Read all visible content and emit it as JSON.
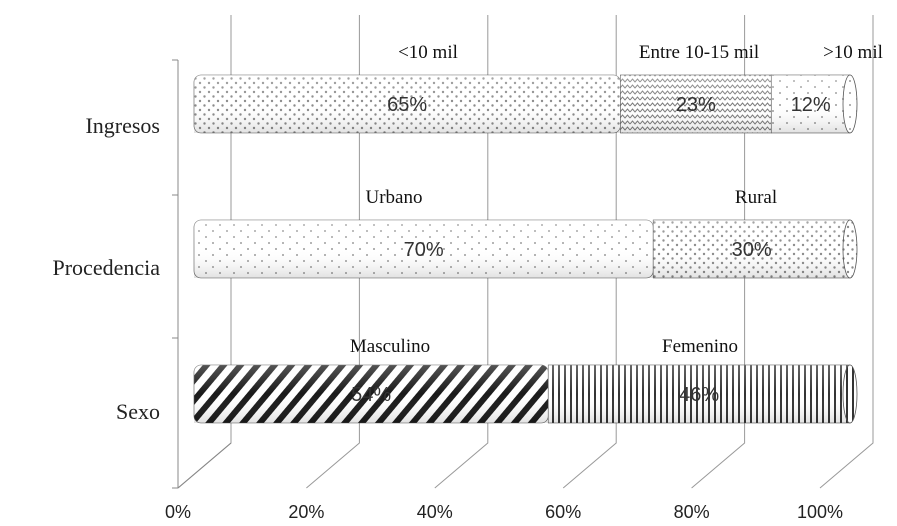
{
  "chart_data": {
    "type": "bar",
    "orientation": "horizontal",
    "stacked": "100%",
    "categories": [
      "Ingresos",
      "Procedencia",
      "Sexo"
    ],
    "segments": [
      [
        {
          "label": "<10 mil",
          "value": 65,
          "value_label": "65%",
          "pattern": "dots-dense"
        },
        {
          "label": "Entre 10-15 mil",
          "value": 23,
          "value_label": "23%",
          "pattern": "zigzag"
        },
        {
          "label": ">10 mil",
          "value": 12,
          "value_label": "12%",
          "pattern": "dots-sparse"
        }
      ],
      [
        {
          "label": "Urbano",
          "value": 70,
          "value_label": "70%",
          "pattern": "dots-sparse"
        },
        {
          "label": "Rural",
          "value": 30,
          "value_label": "30%",
          "pattern": "dots-dense"
        }
      ],
      [
        {
          "label": "Masculino",
          "value": 54,
          "value_label": "54%",
          "pattern": "diagonal"
        },
        {
          "label": "Femenino",
          "value": 46,
          "value_label": "46%",
          "pattern": "vertical"
        }
      ]
    ],
    "x_ticks": [
      "0%",
      "20%",
      "40%",
      "60%",
      "80%",
      "100%"
    ],
    "xlim": [
      0,
      100
    ],
    "grid": true,
    "style": "3d-cylinder"
  }
}
